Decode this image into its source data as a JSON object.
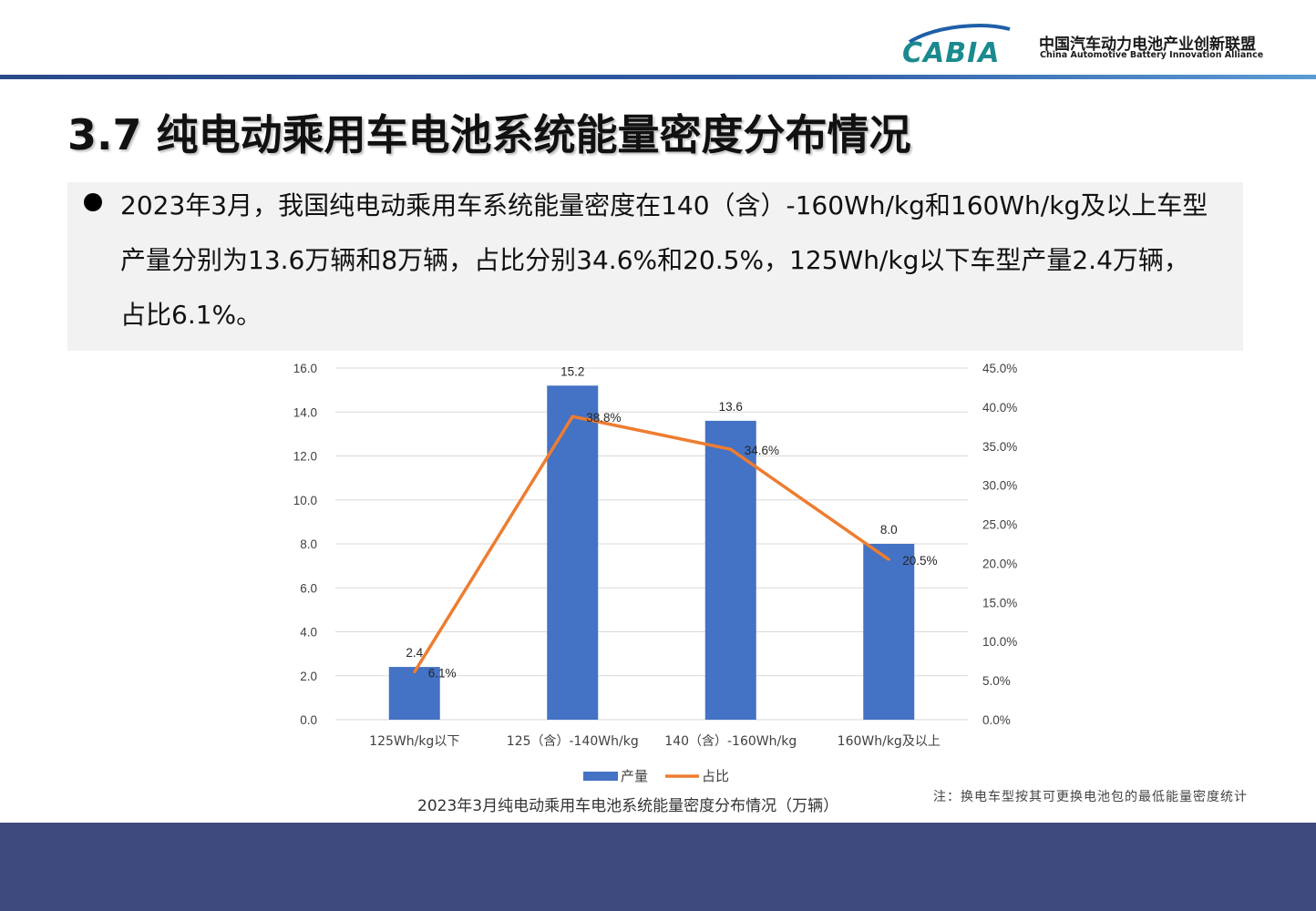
{
  "header": {
    "logo_mark": "CABIA",
    "org_name_cn": "中国汽车动力电池产业创新联盟",
    "org_name_en": "China Automotive Battery Innovation Alliance",
    "colors": {
      "header_line": "#2f5aa3",
      "logo_teal": "#1b8a8f",
      "logo_blue": "#1f5fa8"
    }
  },
  "page": {
    "title": "3.7 纯电动乘用车电池系统能量密度分布情况",
    "summary": "2023年3月，我国纯电动乘用车系统能量密度在140（含）-160Wh/kg和160Wh/kg及以上车型产量分别为13.6万辆和8万辆，占比分别34.6%和20.5%，125Wh/kg以下车型产量2.4万辆，占比6.1%。",
    "caption": "2023年3月纯电动乘用车电池系统能量密度分布情况（万辆）",
    "footnote": "注：换电车型按其可更换电池包的最低能量密度统计",
    "footer_color": "#3f4a7c"
  },
  "chart_data": {
    "type": "bar",
    "title": "",
    "categories": [
      "125Wh/kg以下",
      "125（含）-140Wh/kg",
      "140（含）-160Wh/kg",
      "160Wh/kg及以上"
    ],
    "series": [
      {
        "name": "产量",
        "type": "bar",
        "axis": "left",
        "color": "#4472c4",
        "values": [
          2.4,
          15.2,
          13.6,
          8.0
        ],
        "labels": [
          "2.4",
          "15.2",
          "13.6",
          "8.0"
        ]
      },
      {
        "name": "占比",
        "type": "line",
        "axis": "right",
        "color": "#ed7d31",
        "values": [
          6.1,
          38.8,
          34.6,
          20.5
        ],
        "labels": [
          "6.1%",
          "38.8%",
          "34.6%",
          "20.5%"
        ]
      }
    ],
    "y_left": {
      "min": 0,
      "max": 16,
      "ticks": [
        "0.0",
        "2.0",
        "4.0",
        "6.0",
        "8.0",
        "10.0",
        "12.0",
        "14.0",
        "16.0"
      ]
    },
    "y_right": {
      "min": 0,
      "max": 45,
      "ticks": [
        "0.0%",
        "5.0%",
        "10.0%",
        "15.0%",
        "20.0%",
        "25.0%",
        "30.0%",
        "35.0%",
        "40.0%",
        "45.0%"
      ]
    },
    "grid": true,
    "legend": "bottom"
  }
}
